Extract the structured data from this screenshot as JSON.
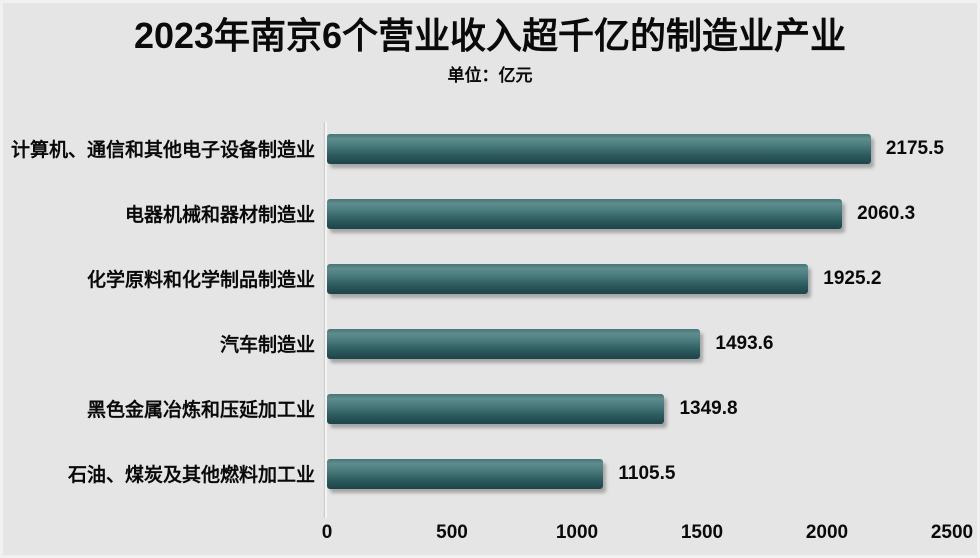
{
  "title": "2023年南京6个营业收入超千亿的制造业产业",
  "subtitle": "单位：亿元",
  "colors": {
    "background": "#e5e5e5",
    "bar_gradient_top": "#5f8c8c",
    "bar_gradient_bottom": "#1d4347",
    "text": "#0a0a0a"
  },
  "chart_data": {
    "type": "bar",
    "orientation": "horizontal",
    "title": "2023年南京6个营业收入超千亿的制造业产业",
    "subtitle": "单位：亿元",
    "unit": "亿元",
    "categories": [
      "计算机、通信和其他电子设备制造业",
      "电器机械和器材制造业",
      "化学原料和化学制品制造业",
      "汽车制造业",
      "黑色金属冶炼和压延加工业",
      "石油、煤炭及其他燃料加工业"
    ],
    "values": [
      2175.5,
      2060.3,
      1925.2,
      1493.6,
      1349.8,
      1105.5
    ],
    "xlabel": "",
    "ylabel": "",
    "xlim": [
      0,
      2500
    ],
    "xticks": [
      0,
      500,
      1000,
      1500,
      2000,
      2500
    ],
    "grid": false,
    "legend": false,
    "value_labels_shown": true
  }
}
